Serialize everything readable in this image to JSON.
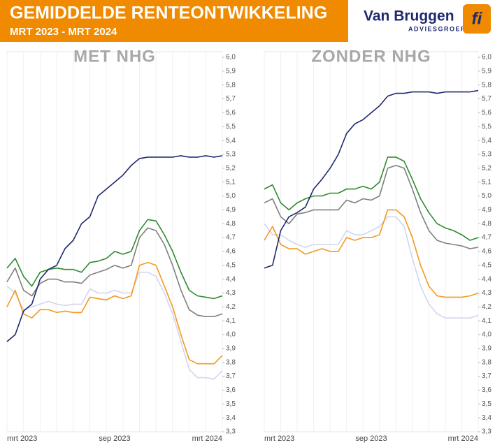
{
  "header": {
    "title": "GEMIDDELDE RENTEONTWIKKELING",
    "subtitle": "MRT 2023 - MRT 2024"
  },
  "logo": {
    "name": "Van Bruggen",
    "sub": "ADVIESGROEP",
    "icon": "fi"
  },
  "chart_data": [
    {
      "type": "line",
      "title": "MET NHG",
      "categories": [
        "mrt 2023",
        null,
        null,
        null,
        null,
        null,
        null,
        null,
        null,
        null,
        null,
        null,
        null,
        "sep 2023",
        null,
        null,
        null,
        null,
        null,
        null,
        null,
        null,
        null,
        null,
        null,
        null,
        "mrt 2024"
      ],
      "ylim": [
        3.3,
        6.0
      ],
      "yticks": [
        {
          "value": 3.3,
          "label": "3,3"
        },
        {
          "value": 3.4,
          "label": "3,4"
        },
        {
          "value": 3.5,
          "label": "3,5"
        },
        {
          "value": 3.6,
          "label": "3,6"
        },
        {
          "value": 3.7,
          "label": "3,7"
        },
        {
          "value": 3.8,
          "label": "3,8"
        },
        {
          "value": 3.9,
          "label": "3,9"
        },
        {
          "value": 4.0,
          "label": "4,0"
        },
        {
          "value": 4.1,
          "label": "4,1"
        },
        {
          "value": 4.2,
          "label": "4,2"
        },
        {
          "value": 4.3,
          "label": "4,3"
        },
        {
          "value": 4.4,
          "label": "4,4"
        },
        {
          "value": 4.5,
          "label": "4,5"
        },
        {
          "value": 4.6,
          "label": "4,6"
        },
        {
          "value": 4.7,
          "label": "4,7"
        },
        {
          "value": 4.8,
          "label": "4,8"
        },
        {
          "value": 4.9,
          "label": "4,9"
        },
        {
          "value": 5.0,
          "label": "5,0"
        },
        {
          "value": 5.1,
          "label": "5,1"
        },
        {
          "value": 5.2,
          "label": "5,2"
        },
        {
          "value": 5.3,
          "label": "5,3"
        },
        {
          "value": 5.4,
          "label": "5,4"
        },
        {
          "value": 5.5,
          "label": "5,5"
        },
        {
          "value": 5.6,
          "label": "5,6"
        },
        {
          "value": 5.7,
          "label": "5,7"
        },
        {
          "value": 5.8,
          "label": "5,8"
        },
        {
          "value": 5.9,
          "label": "5,9"
        },
        {
          "value": 6.0,
          "label": "6,0"
        }
      ],
      "series": [
        {
          "color": "#d3d6ee",
          "values": [
            4.35,
            4.3,
            4.18,
            4.2,
            4.22,
            4.24,
            4.22,
            4.21,
            4.22,
            4.22,
            4.33,
            4.3,
            4.3,
            4.32,
            4.3,
            4.3,
            4.45,
            4.45,
            4.42,
            4.3,
            4.15,
            3.95,
            3.75,
            3.69,
            3.69,
            3.68,
            3.74
          ]
        },
        {
          "color": "#f39a1e",
          "values": [
            4.2,
            4.32,
            4.15,
            4.12,
            4.18,
            4.18,
            4.16,
            4.17,
            4.16,
            4.16,
            4.27,
            4.26,
            4.25,
            4.28,
            4.26,
            4.28,
            4.5,
            4.52,
            4.5,
            4.35,
            4.2,
            4.0,
            3.82,
            3.79,
            3.79,
            3.79,
            3.85
          ]
        },
        {
          "color": "#7f7f7f",
          "values": [
            4.38,
            4.48,
            4.32,
            4.28,
            4.37,
            4.4,
            4.4,
            4.38,
            4.38,
            4.37,
            4.43,
            4.45,
            4.47,
            4.5,
            4.48,
            4.5,
            4.7,
            4.77,
            4.75,
            4.65,
            4.5,
            4.32,
            4.18,
            4.14,
            4.13,
            4.13,
            4.15
          ]
        },
        {
          "color": "#2e8b2e",
          "values": [
            4.48,
            4.55,
            4.42,
            4.35,
            4.45,
            4.47,
            4.48,
            4.47,
            4.47,
            4.45,
            4.52,
            4.53,
            4.55,
            4.6,
            4.58,
            4.6,
            4.75,
            4.83,
            4.82,
            4.72,
            4.6,
            4.45,
            4.32,
            4.28,
            4.27,
            4.26,
            4.28
          ]
        },
        {
          "color": "#1f2a6e",
          "values": [
            3.95,
            4.0,
            4.17,
            4.22,
            4.4,
            4.47,
            4.5,
            4.62,
            4.68,
            4.8,
            4.85,
            5.0,
            5.05,
            5.1,
            5.15,
            5.22,
            5.27,
            5.28,
            5.28,
            5.28,
            5.28,
            5.29,
            5.28,
            5.28,
            5.29,
            5.28,
            5.29
          ]
        }
      ]
    },
    {
      "type": "line",
      "title": "ZONDER NHG",
      "categories": [
        "mrt 2023",
        null,
        null,
        null,
        null,
        null,
        null,
        null,
        null,
        null,
        null,
        null,
        null,
        "sep 2023",
        null,
        null,
        null,
        null,
        null,
        null,
        null,
        null,
        null,
        null,
        null,
        null,
        "mrt 2024"
      ],
      "ylim": [
        3.3,
        6.0
      ],
      "yticks": [
        {
          "value": 3.3,
          "label": "3,3"
        },
        {
          "value": 3.4,
          "label": "3,4"
        },
        {
          "value": 3.5,
          "label": "3,5"
        },
        {
          "value": 3.6,
          "label": "3,6"
        },
        {
          "value": 3.7,
          "label": "3,7"
        },
        {
          "value": 3.8,
          "label": "3,8"
        },
        {
          "value": 3.9,
          "label": "3,9"
        },
        {
          "value": 4.0,
          "label": "4,0"
        },
        {
          "value": 4.1,
          "label": "4,1"
        },
        {
          "value": 4.2,
          "label": "4,2"
        },
        {
          "value": 4.3,
          "label": "4,3"
        },
        {
          "value": 4.4,
          "label": "4,4"
        },
        {
          "value": 4.5,
          "label": "4,5"
        },
        {
          "value": 4.6,
          "label": "4,6"
        },
        {
          "value": 4.7,
          "label": "4,7"
        },
        {
          "value": 4.8,
          "label": "4,8"
        },
        {
          "value": 4.9,
          "label": "4,9"
        },
        {
          "value": 5.0,
          "label": "5,0"
        },
        {
          "value": 5.1,
          "label": "5,1"
        },
        {
          "value": 5.2,
          "label": "5,2"
        },
        {
          "value": 5.3,
          "label": "5,3"
        },
        {
          "value": 5.4,
          "label": "5,4"
        },
        {
          "value": 5.5,
          "label": "5,5"
        },
        {
          "value": 5.6,
          "label": "5,6"
        },
        {
          "value": 5.7,
          "label": "5,7"
        },
        {
          "value": 5.8,
          "label": "5,8"
        },
        {
          "value": 5.9,
          "label": "5,9"
        },
        {
          "value": 6.0,
          "label": "6,0"
        }
      ],
      "series": [
        {
          "color": "#d3d6ee",
          "values": [
            4.8,
            4.72,
            4.72,
            4.68,
            4.65,
            4.63,
            4.65,
            4.65,
            4.65,
            4.65,
            4.75,
            4.72,
            4.72,
            4.75,
            4.78,
            4.85,
            4.85,
            4.78,
            4.55,
            4.35,
            4.22,
            4.15,
            4.12,
            4.12,
            4.12,
            4.12,
            4.14
          ]
        },
        {
          "color": "#f39a1e",
          "values": [
            4.68,
            4.78,
            4.65,
            4.62,
            4.62,
            4.58,
            4.6,
            4.62,
            4.6,
            4.6,
            4.7,
            4.68,
            4.7,
            4.7,
            4.72,
            4.9,
            4.9,
            4.85,
            4.7,
            4.5,
            4.35,
            4.28,
            4.27,
            4.27,
            4.27,
            4.28,
            4.3
          ]
        },
        {
          "color": "#7f7f7f",
          "values": [
            4.95,
            4.98,
            4.85,
            4.8,
            4.87,
            4.88,
            4.9,
            4.9,
            4.9,
            4.9,
            4.97,
            4.95,
            4.98,
            4.97,
            5.0,
            5.2,
            5.22,
            5.2,
            5.05,
            4.88,
            4.75,
            4.68,
            4.66,
            4.65,
            4.64,
            4.62,
            4.63
          ]
        },
        {
          "color": "#2e8b2e",
          "values": [
            5.05,
            5.08,
            4.95,
            4.9,
            4.95,
            4.98,
            5.0,
            5.0,
            5.02,
            5.02,
            5.05,
            5.05,
            5.07,
            5.05,
            5.1,
            5.28,
            5.28,
            5.25,
            5.12,
            4.98,
            4.88,
            4.8,
            4.77,
            4.75,
            4.72,
            4.68,
            4.7
          ]
        },
        {
          "color": "#1f2a6e",
          "values": [
            4.48,
            4.5,
            4.75,
            4.85,
            4.88,
            4.92,
            5.05,
            5.12,
            5.2,
            5.3,
            5.45,
            5.52,
            5.55,
            5.6,
            5.65,
            5.72,
            5.74,
            5.74,
            5.75,
            5.75,
            5.75,
            5.74,
            5.75,
            5.75,
            5.75,
            5.75,
            5.76
          ]
        }
      ]
    }
  ]
}
